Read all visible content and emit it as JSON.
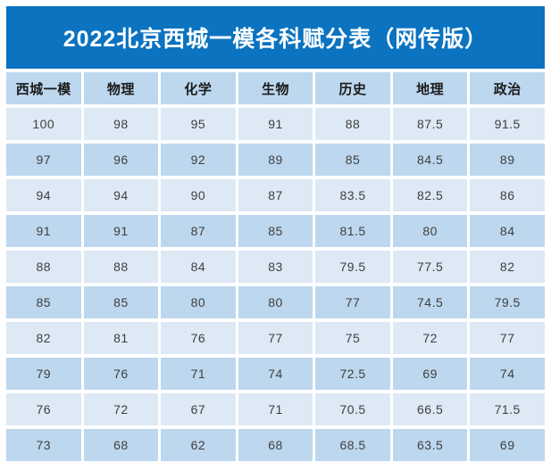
{
  "page": {
    "title": "2022北京西城一模各科赋分表（网传版）"
  },
  "colors": {
    "page_bg": "#ffffff",
    "banner_bg": "#0b73c0",
    "banner_text": "#ffffff",
    "header_bg": "#bdd7ee",
    "header_text": "#1a1a1a",
    "row_light": "#dde9f5",
    "row_dark": "#bdd7ee",
    "cell_text": "#3f3f3f"
  },
  "chart_data": {
    "type": "table",
    "title": "2022北京西城一模各科赋分表（网传版）",
    "columns": [
      "西城一模",
      "物理",
      "化学",
      "生物",
      "历史",
      "地理",
      "政治"
    ],
    "rows": [
      [
        "100",
        "98",
        "95",
        "91",
        "88",
        "87.5",
        "91.5"
      ],
      [
        "97",
        "96",
        "92",
        "89",
        "85",
        "84.5",
        "89"
      ],
      [
        "94",
        "94",
        "90",
        "87",
        "83.5",
        "82.5",
        "86"
      ],
      [
        "91",
        "91",
        "87",
        "85",
        "81.5",
        "80",
        "84"
      ],
      [
        "88",
        "88",
        "84",
        "83",
        "79.5",
        "77.5",
        "82"
      ],
      [
        "85",
        "85",
        "80",
        "80",
        "77",
        "74.5",
        "79.5"
      ],
      [
        "82",
        "81",
        "76",
        "77",
        "75",
        "72",
        "77"
      ],
      [
        "79",
        "76",
        "71",
        "74",
        "72.5",
        "69",
        "74"
      ],
      [
        "76",
        "72",
        "67",
        "71",
        "70.5",
        "66.5",
        "71.5"
      ],
      [
        "73",
        "68",
        "62",
        "68",
        "68.5",
        "63.5",
        "69"
      ]
    ]
  }
}
